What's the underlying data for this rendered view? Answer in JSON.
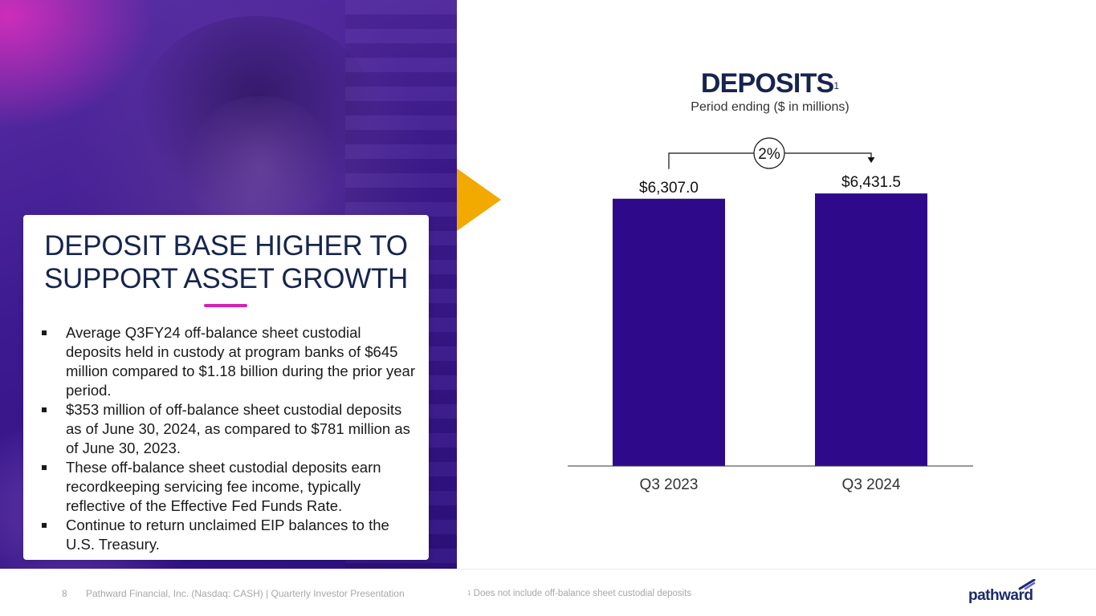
{
  "card": {
    "title_line1": "DEPOSIT BASE HIGHER TO",
    "title_line2": "SUPPORT ASSET GROWTH",
    "bullets": [
      "Average Q3FY24 off-balance sheet custodial deposits held in custody at program banks of $645 million compared to $1.18 billion during the prior year period.",
      "$353 million of off-balance sheet custodial deposits as of June 30, 2024, as compared to $781 million as of June 30, 2023.",
      "These off-balance sheet custodial deposits earn recordkeeping servicing fee income, typically reflective of the Effective Fed Funds Rate.",
      "Continue to return unclaimed EIP balances to the U.S. Treasury."
    ]
  },
  "chart_data": {
    "type": "bar",
    "title": "DEPOSITS",
    "title_superscript": "1",
    "subtitle": "Period ending ($ in millions)",
    "categories": [
      "Q3 2023",
      "Q3 2024"
    ],
    "values": [
      6307.0,
      6431.5
    ],
    "value_labels": [
      "$6,307.0",
      "$6,431.5"
    ],
    "growth_label": "2%",
    "bar_color": "#2e0a8a",
    "ylim": [
      0,
      6700
    ],
    "grid": false,
    "legend": "none"
  },
  "footer": {
    "page_number": "8",
    "company_text": "Pathward Financial, Inc. (Nasdaq: CASH) | Quarterly Investor Presentation",
    "footnote_marker": "1",
    "footnote_text": " Does not include off-balance sheet custodial deposits",
    "logo_text": "pathward"
  },
  "colors": {
    "navy": "#16244f",
    "accent_magenta": "#d91fb2",
    "accent_gold": "#f2a900",
    "brand_purple": "#2e0a8a"
  }
}
